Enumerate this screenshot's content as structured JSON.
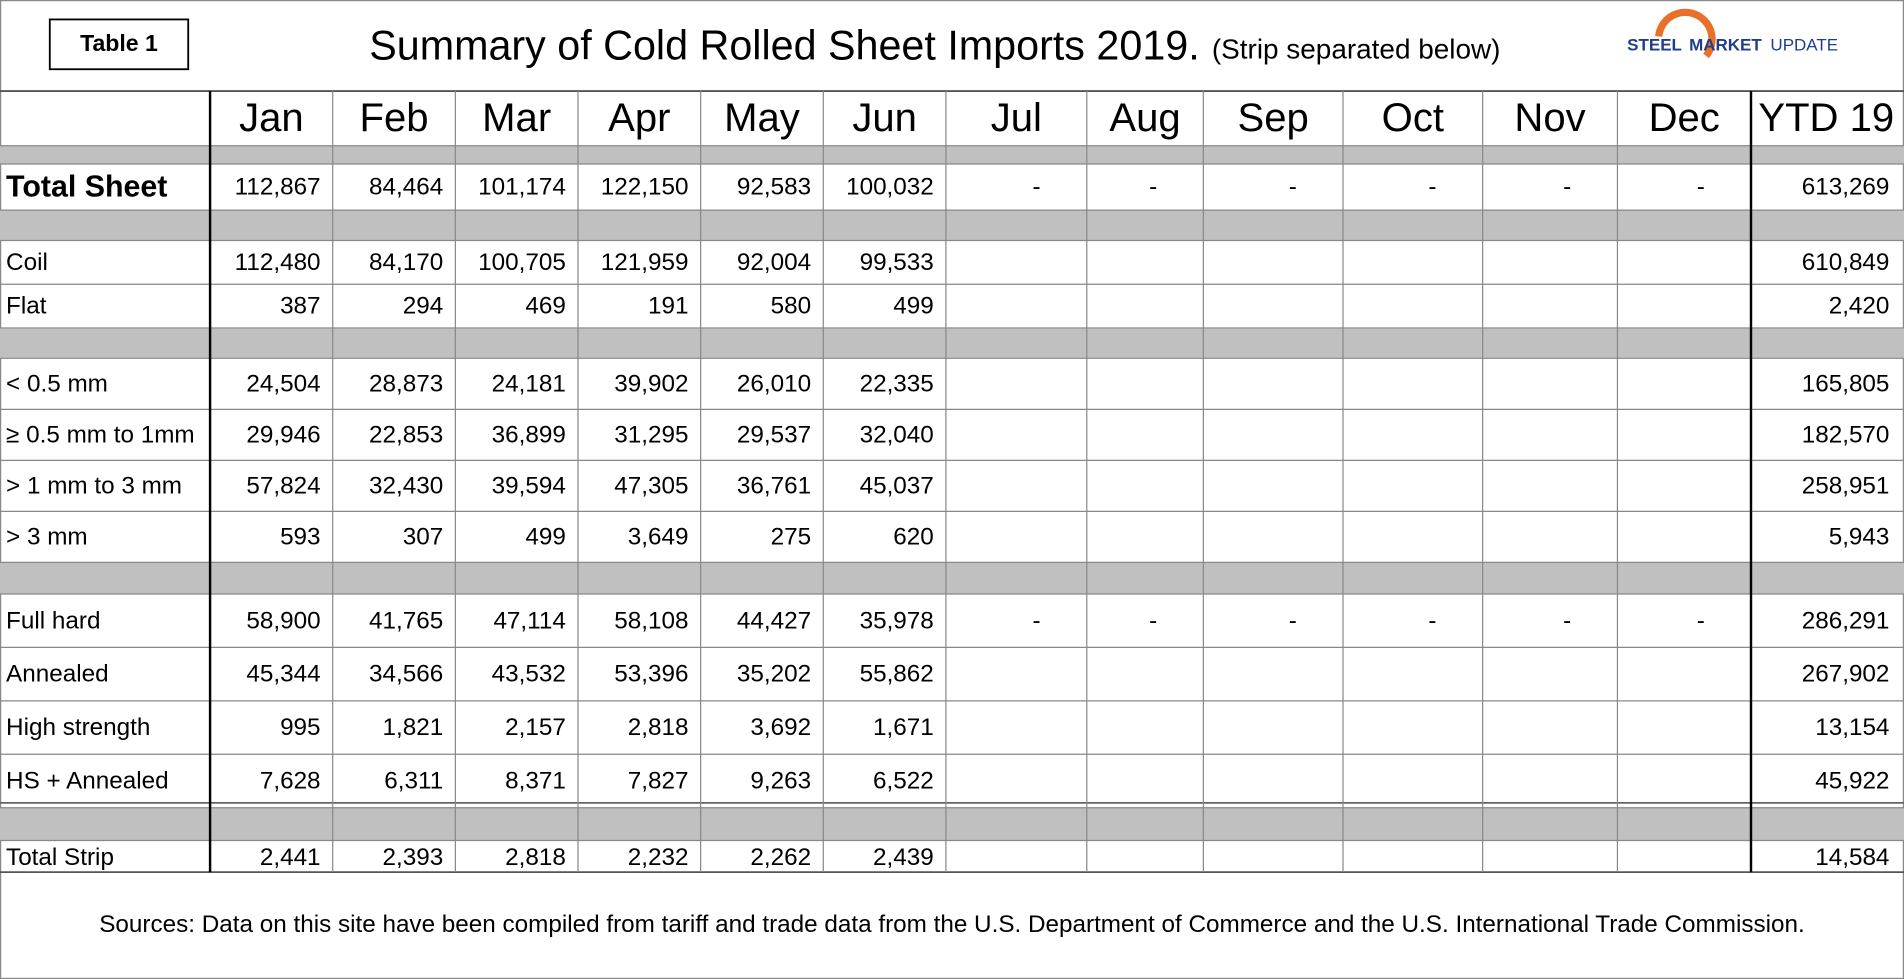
{
  "header": {
    "table_label": "Table 1",
    "title": "Summary of Cold Rolled Sheet Imports 2019.",
    "subtitle": "(Strip separated below)",
    "logo": [
      "STEEL",
      "MARKET",
      "UPDATE"
    ]
  },
  "table": {
    "columns": [
      "Jan",
      "Feb",
      "Mar",
      "Apr",
      "May",
      "Jun",
      "Jul",
      "Aug",
      "Sep",
      "Oct",
      "Nov",
      "Dec",
      "YTD 19"
    ],
    "groups": [
      [
        {
          "label": "Total Sheet",
          "cells": [
            "112,867",
            "84,464",
            "101,174",
            "122,150",
            "92,583",
            "100,032",
            "-",
            "-",
            "-",
            "-",
            "-",
            "-",
            "613,269"
          ]
        }
      ],
      [
        {
          "label": "Coil",
          "cells": [
            "112,480",
            "84,170",
            "100,705",
            "121,959",
            "92,004",
            "99,533",
            null,
            null,
            null,
            null,
            null,
            null,
            "610,849"
          ]
        },
        {
          "label": "Flat",
          "cells": [
            "387",
            "294",
            "469",
            "191",
            "580",
            "499",
            null,
            null,
            null,
            null,
            null,
            null,
            "2,420"
          ]
        }
      ],
      [
        {
          "label": "< 0.5 mm",
          "cells": [
            "24,504",
            "28,873",
            "24,181",
            "39,902",
            "26,010",
            "22,335",
            null,
            null,
            null,
            null,
            null,
            null,
            "165,805"
          ]
        },
        {
          "label": "≥ 0.5 mm to 1mm",
          "cells": [
            "29,946",
            "22,853",
            "36,899",
            "31,295",
            "29,537",
            "32,040",
            null,
            null,
            null,
            null,
            null,
            null,
            "182,570"
          ]
        },
        {
          "label": "> 1 mm to 3 mm",
          "cells": [
            "57,824",
            "32,430",
            "39,594",
            "47,305",
            "36,761",
            "45,037",
            null,
            null,
            null,
            null,
            null,
            null,
            "258,951"
          ]
        },
        {
          "label": "> 3 mm",
          "cells": [
            "593",
            "307",
            "499",
            "3,649",
            "275",
            "620",
            null,
            null,
            null,
            null,
            null,
            null,
            "5,943"
          ]
        }
      ],
      [
        {
          "label": "Full hard",
          "cells": [
            "58,900",
            "41,765",
            "47,114",
            "58,108",
            "44,427",
            "35,978",
            "-",
            "-",
            "-",
            "-",
            "-",
            "-",
            "286,291"
          ]
        },
        {
          "label": "Annealed",
          "cells": [
            "45,344",
            "34,566",
            "43,532",
            "53,396",
            "35,202",
            "55,862",
            null,
            null,
            null,
            null,
            null,
            null,
            "267,902"
          ]
        },
        {
          "label": "High strength",
          "cells": [
            "995",
            "1,821",
            "2,157",
            "2,818",
            "3,692",
            "1,671",
            null,
            null,
            null,
            null,
            null,
            null,
            "13,154"
          ]
        },
        {
          "label": "HS + Annealed",
          "cells": [
            "7,628",
            "6,311",
            "8,371",
            "7,827",
            "9,263",
            "6,522",
            null,
            null,
            null,
            null,
            null,
            null,
            "45,922"
          ]
        }
      ],
      [
        {
          "label": "Total Strip",
          "cells": [
            "2,441",
            "2,393",
            "2,818",
            "2,232",
            "2,262",
            "2,439",
            null,
            null,
            null,
            null,
            null,
            null,
            "14,584"
          ]
        }
      ]
    ]
  },
  "footer": {
    "source": "Sources: Data on this site have been compiled from tariff and trade data from the U.S. Department of Commerce and the U.S. International Trade Commission."
  }
}
